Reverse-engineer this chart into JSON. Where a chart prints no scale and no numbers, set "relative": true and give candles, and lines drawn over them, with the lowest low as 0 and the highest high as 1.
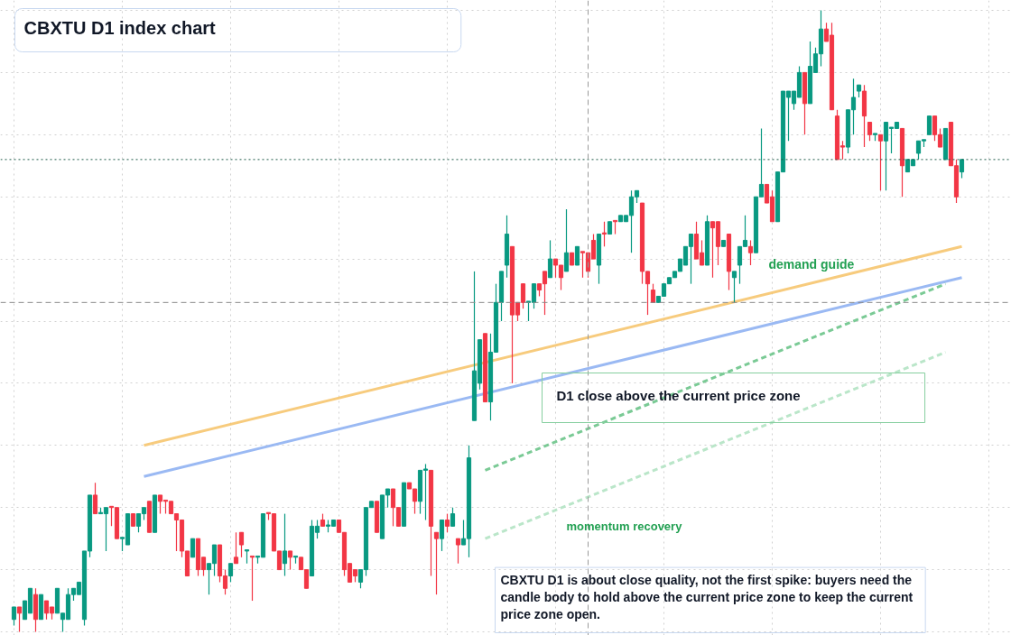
{
  "chart_data": {
    "type": "candlestick",
    "title": "CBXTU D1 index chart",
    "relative": true,
    "grid": true,
    "categories": [
      null,
      null,
      null,
      null,
      null,
      null,
      null,
      null,
      null,
      null,
      null,
      null,
      null,
      null,
      null,
      null,
      null,
      null,
      null,
      null,
      null,
      null,
      null,
      null,
      null,
      null,
      null,
      null,
      null,
      null,
      null,
      null,
      null,
      null,
      null,
      null,
      null,
      null,
      null,
      null,
      null,
      null,
      null,
      null,
      null,
      null,
      null,
      null,
      null,
      null,
      null,
      null,
      null,
      null,
      null,
      null,
      null,
      null,
      null,
      null,
      null,
      null,
      null,
      null,
      null,
      null,
      null,
      null,
      null,
      null,
      null,
      null,
      null,
      null,
      null,
      null,
      null,
      null,
      null,
      null,
      null,
      null,
      null,
      null,
      null,
      null,
      null,
      null,
      null,
      null,
      null,
      null,
      null,
      null,
      null,
      null,
      null,
      null,
      null,
      null,
      null,
      null,
      null,
      null,
      null,
      null,
      null,
      null,
      null,
      null,
      null,
      null,
      null,
      null,
      null,
      null,
      null,
      null,
      null,
      null,
      null,
      null,
      null,
      null,
      null,
      null,
      null,
      null,
      null,
      null,
      null,
      null,
      null,
      null,
      null,
      null,
      null,
      null,
      null,
      null,
      null,
      null,
      null,
      null,
      null,
      null,
      null,
      null,
      null,
      null,
      null,
      null,
      null,
      null,
      null,
      null,
      null,
      null,
      null,
      null,
      null,
      null,
      null,
      null,
      null,
      null,
      null,
      null,
      null,
      null,
      null,
      null,
      null,
      null,
      null,
      null
    ],
    "ohlc": [
      [
        0.02,
        0.04,
        0.01,
        0.04
      ],
      [
        0.04,
        0.04,
        0,
        0.03
      ],
      [
        0.02,
        0.05,
        0.02,
        0.05
      ],
      [
        0.03,
        0.07,
        0.03,
        0.07
      ],
      [
        0.06,
        0.07,
        0.0,
        0.02
      ],
      [
        0.02,
        0.06,
        0.02,
        0.06
      ],
      [
        0.05,
        0.05,
        0.02,
        0.03
      ],
      [
        0.04,
        0.04,
        0.02,
        0.03
      ],
      [
        0.03,
        0.07,
        0.03,
        0.07
      ],
      [
        0.02,
        0.03,
        0.0,
        0.03
      ],
      [
        0.02,
        0.07,
        0.02,
        0.06
      ],
      [
        0.06,
        0.07,
        0.05,
        0.07
      ],
      [
        0.06,
        0.08,
        0.06,
        0.08
      ],
      [
        0.02,
        0.13,
        0.01,
        0.13
      ],
      [
        0.13,
        0.22,
        0.12,
        0.22
      ],
      [
        0.22,
        0.24,
        0.19,
        0.19
      ],
      [
        0.19,
        0.2,
        0.19,
        0.19
      ],
      [
        0.19,
        0.2,
        0.13,
        0.2
      ],
      [
        0.2,
        0.2,
        0.17,
        0.2
      ],
      [
        0.2,
        0.2,
        0.15,
        0.15
      ],
      [
        0.15,
        0.15,
        0.13,
        0.15
      ],
      [
        0.14,
        0.19,
        0.14,
        0.19
      ],
      [
        0.19,
        0.19,
        0.17,
        0.17
      ],
      [
        0.17,
        0.19,
        0.16,
        0.19
      ],
      [
        0.19,
        0.2,
        0.18,
        0.2
      ],
      [
        0.21,
        0.21,
        0.16,
        0.16
      ],
      [
        0.16,
        0.22,
        0.16,
        0.22
      ],
      [
        0.22,
        0.22,
        0.19,
        0.21
      ],
      [
        0.21,
        0.21,
        0.19,
        0.21
      ],
      [
        0.21,
        0.21,
        0.19,
        0.19
      ],
      [
        0.19,
        0.19,
        0.13,
        0.18
      ],
      [
        0.18,
        0.18,
        0.12,
        0.13
      ],
      [
        0.13,
        0.13,
        0.09,
        0.09
      ],
      [
        0.12,
        0.15,
        0.12,
        0.15
      ],
      [
        0.15,
        0.15,
        0.09,
        0.1
      ],
      [
        0.12,
        0.12,
        0.09,
        0.1
      ],
      [
        0.1,
        0.11,
        0.06,
        0.11
      ],
      [
        0.11,
        0.14,
        0.09,
        0.14
      ],
      [
        0.14,
        0.14,
        0.08,
        0.09
      ],
      [
        0.09,
        0.1,
        0.06,
        0.07
      ],
      [
        0.09,
        0.11,
        0.08,
        0.11
      ],
      [
        0.12,
        0.16,
        0.11,
        0.11
      ],
      [
        0.16,
        0.16,
        0.12,
        0.14
      ],
      [
        0.13,
        0.13,
        0.11,
        0.13
      ],
      [
        0.12,
        0.12,
        0.05,
        0.12
      ],
      [
        0.12,
        0.12,
        0.11,
        0.12
      ],
      [
        0.12,
        0.19,
        0.12,
        0.19
      ],
      [
        0.19,
        0.19,
        0.18,
        0.19
      ],
      [
        0.19,
        0.19,
        0.13,
        0.13
      ],
      [
        0.13,
        0.13,
        0.1,
        0.1
      ],
      [
        0.11,
        0.19,
        0.09,
        0.13
      ],
      [
        0.13,
        0.13,
        0.1,
        0.12
      ],
      [
        0.12,
        0.12,
        0.11,
        0.12
      ],
      [
        0.12,
        0.12,
        0.1,
        0.1
      ],
      [
        0.1,
        0.1,
        0.07,
        0.07
      ],
      [
        0.09,
        0.18,
        0.09,
        0.17
      ],
      [
        0.16,
        0.18,
        0.15,
        0.17
      ],
      [
        0.18,
        0.19,
        0.17,
        0.17
      ],
      [
        0.17,
        0.18,
        0.16,
        0.17
      ],
      [
        0.17,
        0.18,
        0.17,
        0.18
      ],
      [
        0.18,
        0.18,
        0.16,
        0.16
      ],
      [
        0.16,
        0.16,
        0.09,
        0.1
      ],
      [
        0.11,
        0.11,
        0.08,
        0.08
      ],
      [
        0.1,
        0.1,
        0.08,
        0.09
      ],
      [
        0.08,
        0.1,
        0.07,
        0.1
      ],
      [
        0.1,
        0.2,
        0.09,
        0.2
      ],
      [
        0.2,
        0.21,
        0.2,
        0.21
      ],
      [
        0.21,
        0.21,
        0.16,
        0.16
      ],
      [
        0.15,
        0.22,
        0.15,
        0.22
      ],
      [
        0.22,
        0.23,
        0.2,
        0.23
      ],
      [
        0.23,
        0.23,
        0.17,
        0.2
      ],
      [
        0.2,
        0.2,
        0.17,
        0.17
      ],
      [
        0.17,
        0.24,
        0.17,
        0.24
      ],
      [
        0.24,
        0.24,
        0.23,
        0.23
      ],
      [
        0.23,
        0.23,
        0.19,
        0.21
      ],
      [
        0.21,
        0.26,
        0.19,
        0.26
      ],
      [
        0.26,
        0.27,
        0.18,
        0.26
      ],
      [
        0.26,
        0.26,
        0.09,
        0.17
      ],
      [
        0.16,
        0.16,
        0.06,
        0.15
      ],
      [
        0.15,
        0.18,
        0.13,
        0.18
      ],
      [
        0.18,
        0.19,
        0.16,
        0.17
      ],
      [
        0.17,
        0.2,
        0.17,
        0.19
      ],
      [
        0.15,
        0.15,
        0.11,
        0.14
      ],
      [
        0.14,
        0.18,
        0.14,
        0.15
      ],
      [
        0.15,
        0.3,
        0.12,
        0.28
      ],
      [
        0.34,
        0.58,
        0.34,
        0.42
      ],
      [
        0.4,
        0.47,
        0.39,
        0.47
      ],
      [
        0.48,
        0.48,
        0.37,
        0.37
      ],
      [
        0.37,
        0.48,
        0.34,
        0.45
      ],
      [
        0.45,
        0.56,
        0.45,
        0.53
      ],
      [
        0.53,
        0.58,
        0.5,
        0.58
      ],
      [
        0.59,
        0.67,
        0.57,
        0.64
      ],
      [
        0.62,
        0.62,
        0.4,
        0.51
      ],
      [
        0.53,
        0.53,
        0.5,
        0.51
      ],
      [
        0.56,
        0.56,
        0.52,
        0.53
      ],
      [
        0.53,
        0.53,
        0.5,
        0.53
      ],
      [
        0.53,
        0.56,
        0.52,
        0.56
      ],
      [
        0.56,
        0.56,
        0.54,
        0.55
      ],
      [
        0.58,
        0.58,
        0.51,
        0.56
      ],
      [
        0.57,
        0.63,
        0.57,
        0.6
      ],
      [
        0.6,
        0.6,
        0.57,
        0.59
      ],
      [
        0.59,
        0.59,
        0.55,
        0.57
      ],
      [
        0.58,
        0.68,
        0.58,
        0.61
      ],
      [
        0.61,
        0.61,
        0.59,
        0.59
      ],
      [
        0.59,
        0.62,
        0.59,
        0.62
      ],
      [
        0.61,
        0.61,
        0.57,
        0.61
      ],
      [
        0.61,
        0.61,
        0.57,
        0.58
      ],
      [
        0.63,
        0.64,
        0.6,
        0.6
      ],
      [
        0.59,
        0.64,
        0.56,
        0.64
      ],
      [
        0.64,
        0.66,
        0.62,
        0.64
      ],
      [
        0.64,
        0.66,
        0.64,
        0.66
      ],
      [
        0.66,
        0.66,
        0.64,
        0.66
      ],
      [
        0.66,
        0.67,
        0.66,
        0.67
      ],
      [
        0.66,
        0.67,
        0.66,
        0.67
      ],
      [
        0.67,
        0.71,
        0.61,
        0.7
      ],
      [
        0.7,
        0.71,
        0.69,
        0.71
      ],
      [
        0.69,
        0.69,
        0.56,
        0.58
      ],
      [
        0.58,
        0.58,
        0.51,
        0.56
      ],
      [
        0.55,
        0.56,
        0.53,
        0.53
      ],
      [
        0.53,
        0.54,
        0.53,
        0.54
      ],
      [
        0.54,
        0.56,
        0.54,
        0.56
      ],
      [
        0.56,
        0.57,
        0.56,
        0.57
      ],
      [
        0.57,
        0.58,
        0.57,
        0.58
      ],
      [
        0.58,
        0.6,
        0.58,
        0.6
      ],
      [
        0.59,
        0.62,
        0.59,
        0.62
      ],
      [
        0.62,
        0.64,
        0.56,
        0.64
      ],
      [
        0.64,
        0.66,
        0.6,
        0.6
      ],
      [
        0.61,
        0.63,
        0.59,
        0.59
      ],
      [
        0.59,
        0.67,
        0.59,
        0.66
      ],
      [
        0.66,
        0.66,
        0.57,
        0.65
      ],
      [
        0.66,
        0.66,
        0.59,
        0.62
      ],
      [
        0.62,
        0.63,
        0.62,
        0.63
      ],
      [
        0.64,
        0.64,
        0.55,
        0.58
      ],
      [
        0.57,
        0.58,
        0.53,
        0.58
      ],
      [
        0.59,
        0.62,
        0.56,
        0.62
      ],
      [
        0.62,
        0.67,
        0.62,
        0.63
      ],
      [
        0.62,
        0.63,
        0.59,
        0.61
      ],
      [
        0.61,
        0.7,
        0.61,
        0.7
      ],
      [
        0.7,
        0.81,
        0.7,
        0.72
      ],
      [
        0.72,
        0.72,
        0.69,
        0.69
      ],
      [
        0.7,
        0.71,
        0.66,
        0.66
      ],
      [
        0.66,
        0.74,
        0.66,
        0.74
      ],
      [
        0.74,
        0.87,
        0.74,
        0.87
      ],
      [
        0.86,
        0.87,
        0.79,
        0.87
      ],
      [
        0.85,
        0.87,
        0.84,
        0.87
      ],
      [
        0.86,
        0.91,
        0.86,
        0.9
      ],
      [
        0.9,
        0.9,
        0.8,
        0.85
      ],
      [
        0.85,
        0.95,
        0.85,
        0.91
      ],
      [
        0.9,
        0.94,
        0.9,
        0.93
      ],
      [
        0.93,
        1.0,
        0.91,
        0.97
      ],
      [
        0.97,
        0.98,
        0.95,
        0.95
      ],
      [
        0.96,
        0.98,
        0.84,
        0.84
      ],
      [
        0.83,
        0.84,
        0.76,
        0.76
      ],
      [
        0.78,
        0.79,
        0.76,
        0.78
      ],
      [
        0.78,
        0.84,
        0.77,
        0.84
      ],
      [
        0.84,
        0.89,
        0.8,
        0.86
      ],
      [
        0.87,
        0.88,
        0.86,
        0.88
      ],
      [
        0.87,
        0.88,
        0.78,
        0.83
      ],
      [
        0.82,
        0.82,
        0.79,
        0.8
      ],
      [
        0.8,
        0.8,
        0.79,
        0.8
      ],
      [
        0.8,
        0.8,
        0.71,
        0.79
      ],
      [
        0.79,
        0.82,
        0.71,
        0.82
      ],
      [
        0.81,
        0.81,
        0.77,
        0.81
      ],
      [
        0.81,
        0.82,
        0.81,
        0.82
      ],
      [
        0.81,
        0.81,
        0.7,
        0.75
      ],
      [
        0.74,
        0.76,
        0.74,
        0.76
      ],
      [
        0.75,
        0.76,
        0.75,
        0.76
      ],
      [
        0.77,
        0.79,
        0.76,
        0.79
      ],
      [
        0.79,
        0.79,
        0.78,
        0.79
      ],
      [
        0.8,
        0.83,
        0.8,
        0.83
      ],
      [
        0.83,
        0.83,
        0.79,
        0.8
      ],
      [
        0.8,
        0.81,
        0.78,
        0.78
      ],
      [
        0.76,
        0.81,
        0.76,
        0.81
      ],
      [
        0.82,
        0.82,
        0.75,
        0.75
      ],
      [
        0.75,
        0.76,
        0.69,
        0.7
      ],
      [
        0.74,
        0.76,
        0.73,
        0.76
      ]
    ],
    "colors": [
      "#089981",
      "#f23645",
      "#089981",
      "#089981",
      "#f23645",
      "#089981",
      "#f23645",
      "#f23645",
      "#089981",
      "#089981",
      "#089981",
      "#089981",
      "#089981",
      "#089981",
      "#089981",
      "#f23645",
      "#089981",
      "#089981",
      "#f23645",
      "#f23645",
      "#089981",
      "#089981",
      "#f23645",
      "#089981",
      "#089981",
      "#f23645",
      "#089981",
      "#f23645",
      "#f23645",
      "#f23645",
      "#f23645",
      "#f23645",
      "#f23645",
      "#089981",
      "#f23645",
      "#f23645",
      "#089981",
      "#089981",
      "#f23645",
      "#f23645",
      "#089981",
      "#f23645",
      "#f23645",
      "#089981",
      "#f23645",
      "#089981",
      "#089981",
      "#f23645",
      "#f23645",
      "#f23645",
      "#089981",
      "#f23645",
      "#089981",
      "#f23645",
      "#f23645",
      "#089981",
      "#089981",
      "#f23645",
      "#089981",
      "#089981",
      "#f23645",
      "#f23645",
      "#f23645",
      "#f23645",
      "#089981",
      "#089981",
      "#089981",
      "#f23645",
      "#089981",
      "#089981",
      "#f23645",
      "#f23645",
      "#089981",
      "#f23645",
      "#f23645",
      "#089981",
      "#089981",
      "#f23645",
      "#f23645",
      "#089981",
      "#f23645",
      "#089981",
      "#f23645",
      "#089981",
      "#089981",
      "#089981",
      "#089981",
      "#f23645",
      "#089981",
      "#089981",
      "#089981",
      "#089981",
      "#f23645",
      "#f23645",
      "#f23645",
      "#089981",
      "#089981",
      "#f23645",
      "#f23645",
      "#089981",
      "#f23645",
      "#f23645",
      "#089981",
      "#f23645",
      "#089981",
      "#f23645",
      "#f23645",
      "#f23645",
      "#089981",
      "#f23645",
      "#089981",
      "#f23645",
      "#089981",
      "#089981",
      "#089981",
      "#089981",
      "#f23645",
      "#f23645",
      "#f23645",
      "#089981",
      "#089981",
      "#089981",
      "#089981",
      "#089981",
      "#089981",
      "#089981",
      "#f23645",
      "#f23645",
      "#089981",
      "#f23645",
      "#f23645",
      "#089981",
      "#f23645",
      "#089981",
      "#089981",
      "#089981",
      "#f23645",
      "#089981",
      "#089981",
      "#f23645",
      "#f23645",
      "#089981",
      "#089981",
      "#089981",
      "#089981",
      "#089981",
      "#f23645",
      "#089981",
      "#089981",
      "#089981",
      "#f23645",
      "#f23645",
      "#f23645",
      "#f23645",
      "#089981",
      "#089981",
      "#089981",
      "#f23645",
      "#f23645",
      "#089981",
      "#f23645",
      "#089981",
      "#089981",
      "#089981",
      "#f23645",
      "#089981",
      "#089981",
      "#089981",
      "#089981",
      "#089981",
      "#f23645",
      "#f23645",
      "#089981",
      "#f23645",
      "#f23645",
      "#089981"
    ],
    "series": [
      {
        "type": "line",
        "values": [
          null,
          null,
          null,
          null,
          null,
          null,
          null,
          null,
          null,
          null,
          null,
          null,
          null,
          null,
          null,
          null,
          null,
          null,
          null,
          null,
          null,
          null,
          null,
          null,
          0.3,
          null,
          null,
          null,
          null,
          null,
          null,
          null,
          null,
          null,
          null,
          null,
          null,
          null,
          null,
          null,
          null,
          null,
          null,
          null,
          null,
          null,
          null,
          null,
          null,
          null,
          null,
          null,
          null,
          null,
          null,
          null,
          null,
          null,
          null,
          null,
          null,
          null,
          null,
          null,
          null,
          null,
          null,
          null,
          null,
          null,
          null,
          null,
          null,
          null,
          null,
          null,
          null,
          null,
          null,
          null,
          null,
          null,
          null,
          null,
          null,
          null,
          null,
          null,
          null,
          null,
          null,
          null,
          null,
          null,
          null,
          null,
          null,
          null,
          null,
          null,
          null,
          null,
          null,
          null,
          null,
          null,
          null,
          null,
          null,
          null,
          null,
          null,
          null,
          null,
          null,
          null,
          null,
          null,
          null,
          null,
          null,
          null,
          null,
          null,
          null,
          null,
          null,
          null,
          null,
          null,
          null,
          null,
          null,
          null,
          null,
          null,
          null,
          null,
          null,
          null,
          null,
          null,
          null,
          null,
          null,
          null,
          null,
          null,
          null,
          null,
          null,
          null,
          null,
          null,
          null,
          null,
          null,
          null,
          null,
          null,
          null,
          null,
          null,
          null,
          null,
          null,
          null,
          null,
          null,
          null,
          null,
          null,
          null,
          null,
          null,
          0.62
        ],
        "color": "#f6c56f",
        "line_style": "solid"
      },
      {
        "type": "line",
        "values": [
          null,
          null,
          null,
          null,
          null,
          null,
          null,
          null,
          null,
          null,
          null,
          null,
          null,
          null,
          null,
          null,
          null,
          null,
          null,
          null,
          null,
          null,
          null,
          null,
          0.25,
          null,
          null,
          null,
          null,
          null,
          null,
          null,
          null,
          null,
          null,
          null,
          null,
          null,
          null,
          null,
          null,
          null,
          null,
          null,
          null,
          null,
          null,
          null,
          null,
          null,
          null,
          null,
          null,
          null,
          null,
          null,
          null,
          null,
          null,
          null,
          null,
          null,
          null,
          null,
          null,
          null,
          null,
          null,
          null,
          null,
          null,
          null,
          null,
          null,
          null,
          null,
          null,
          null,
          null,
          null,
          null,
          null,
          null,
          null,
          null,
          null,
          null,
          null,
          null,
          null,
          null,
          null,
          null,
          null,
          null,
          null,
          null,
          null,
          null,
          null,
          null,
          null,
          null,
          null,
          null,
          null,
          null,
          null,
          null,
          null,
          null,
          null,
          null,
          null,
          null,
          null,
          null,
          null,
          null,
          null,
          null,
          null,
          null,
          null,
          null,
          null,
          null,
          null,
          null,
          null,
          null,
          null,
          null,
          null,
          null,
          null,
          null,
          null,
          null,
          null,
          null,
          null,
          null,
          null,
          null,
          null,
          null,
          null,
          null,
          null,
          null,
          null,
          null,
          null,
          null,
          null,
          null,
          null,
          null,
          null,
          null,
          null,
          null,
          null,
          null,
          null,
          null,
          null,
          null,
          null,
          null,
          null,
          null,
          null,
          null,
          0.57
        ],
        "color": "#8fb1f2",
        "line_style": "solid"
      },
      {
        "type": "line",
        "values": [
          null,
          null,
          null,
          null,
          null,
          null,
          null,
          null,
          null,
          null,
          null,
          null,
          null,
          null,
          null,
          null,
          null,
          null,
          null,
          null,
          null,
          null,
          null,
          null,
          null,
          null,
          null,
          null,
          null,
          null,
          null,
          null,
          null,
          null,
          null,
          null,
          null,
          null,
          null,
          null,
          null,
          null,
          null,
          null,
          null,
          null,
          null,
          null,
          null,
          null,
          null,
          null,
          null,
          null,
          null,
          null,
          null,
          null,
          null,
          null,
          null,
          null,
          null,
          null,
          null,
          null,
          null,
          null,
          null,
          null,
          null,
          null,
          null,
          null,
          null,
          null,
          null,
          null,
          null,
          null,
          null,
          null,
          null,
          null,
          null,
          null,
          null,
          0.26,
          null,
          null,
          null,
          null,
          null,
          null,
          null,
          null,
          null,
          null,
          null,
          null,
          null,
          null,
          null,
          null,
          null,
          null,
          null,
          null,
          null,
          null,
          null,
          null,
          null,
          null,
          null,
          null,
          null,
          null,
          null,
          null,
          null,
          null,
          null,
          null,
          null,
          null,
          null,
          null,
          null,
          null,
          null,
          null,
          null,
          null,
          null,
          null,
          null,
          null,
          null,
          null,
          null,
          null,
          null,
          null,
          null,
          null,
          null,
          null,
          null,
          null,
          null,
          null,
          null,
          null,
          null,
          null,
          null,
          null,
          null,
          null,
          null,
          null,
          null,
          null,
          null,
          null,
          null,
          null,
          null,
          null,
          null,
          null,
          0.56,
          null,
          null,
          null
        ],
        "color": "#6cc48a",
        "line_style": "dashed"
      },
      {
        "type": "line",
        "values": [
          null,
          null,
          null,
          null,
          null,
          null,
          null,
          null,
          null,
          null,
          null,
          null,
          null,
          null,
          null,
          null,
          null,
          null,
          null,
          null,
          null,
          null,
          null,
          null,
          null,
          null,
          null,
          null,
          null,
          null,
          null,
          null,
          null,
          null,
          null,
          null,
          null,
          null,
          null,
          null,
          null,
          null,
          null,
          null,
          null,
          null,
          null,
          null,
          null,
          null,
          null,
          null,
          null,
          null,
          null,
          null,
          null,
          null,
          null,
          null,
          null,
          null,
          null,
          null,
          null,
          null,
          null,
          null,
          null,
          null,
          null,
          null,
          null,
          null,
          null,
          null,
          null,
          null,
          null,
          null,
          null,
          null,
          null,
          null,
          null,
          null,
          null,
          0.15,
          null,
          null,
          null,
          null,
          null,
          null,
          null,
          null,
          null,
          null,
          null,
          null,
          null,
          null,
          null,
          null,
          null,
          null,
          null,
          null,
          null,
          null,
          null,
          null,
          null,
          null,
          null,
          null,
          null,
          null,
          null,
          null,
          null,
          null,
          null,
          null,
          null,
          null,
          null,
          null,
          null,
          null,
          null,
          null,
          null,
          null,
          null,
          null,
          null,
          null,
          null,
          null,
          null,
          null,
          null,
          null,
          null,
          null,
          null,
          null,
          null,
          null,
          null,
          null,
          null,
          null,
          null,
          null,
          null,
          null,
          null,
          null,
          null,
          null,
          null,
          null,
          null,
          null,
          null,
          null,
          null,
          null,
          null,
          null,
          0.45,
          null,
          null,
          null
        ],
        "color": "#b3e3c3",
        "line_style": "dashed"
      }
    ],
    "ref_lines": [
      {
        "axis": "y",
        "value": 0.53,
        "color": "#8a8a8a",
        "line_style": "dashed"
      },
      {
        "axis": "y",
        "value": 0.76,
        "color": "#1e5c48",
        "line_style": "dotted"
      }
    ],
    "annotations": [
      "D1 close above the current price zone",
      "CBXTU D1 is about close quality, not the first spike: buyers need the candle body to hold above the current price zone to keep the current price zone open.",
      "momentum recovery",
      "demand guide"
    ]
  }
}
